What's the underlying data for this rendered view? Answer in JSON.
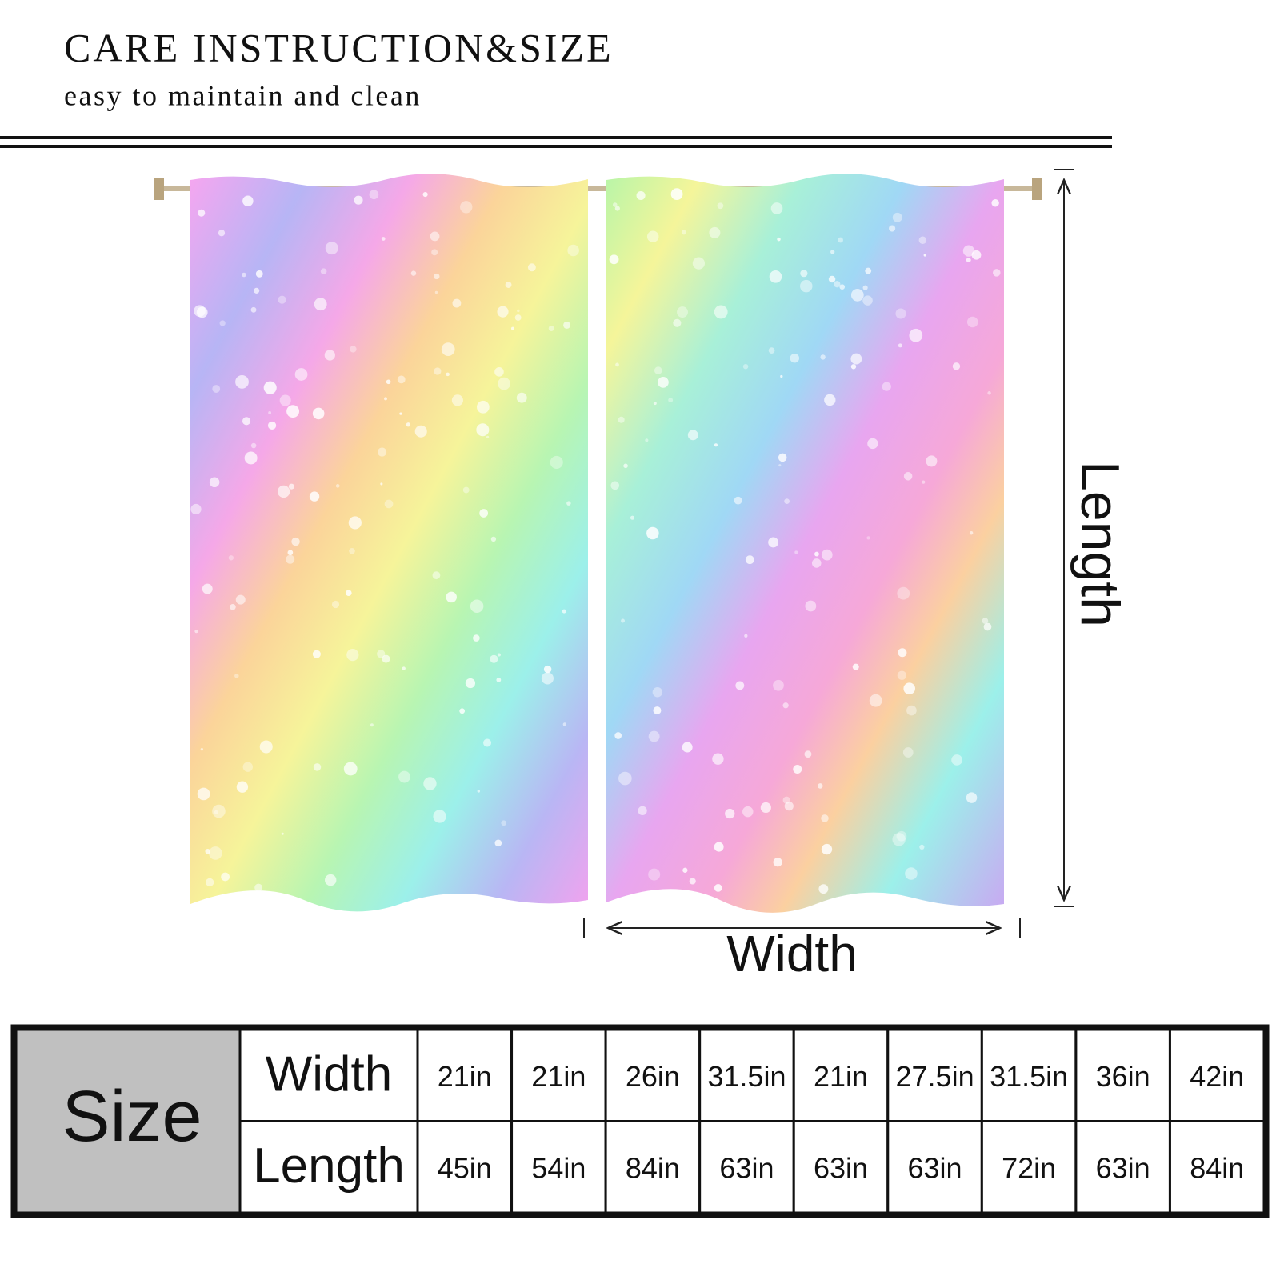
{
  "header": {
    "title": "CARE INSTRUCTION&SIZE",
    "subtitle": "easy to maintain and clean"
  },
  "diagram": {
    "length_label": "Length",
    "width_label": "Width"
  },
  "table": {
    "header": "Size",
    "rows": [
      {
        "label": "Width",
        "cells": [
          "21in",
          "21in",
          "26in",
          "31.5in",
          "21in",
          "27.5in",
          "31.5in",
          "36in",
          "42in"
        ]
      },
      {
        "label": "Length",
        "cells": [
          "45in",
          "54in",
          "84in",
          "63in",
          "63in",
          "63in",
          "72in",
          "63in",
          "84in"
        ]
      }
    ]
  }
}
